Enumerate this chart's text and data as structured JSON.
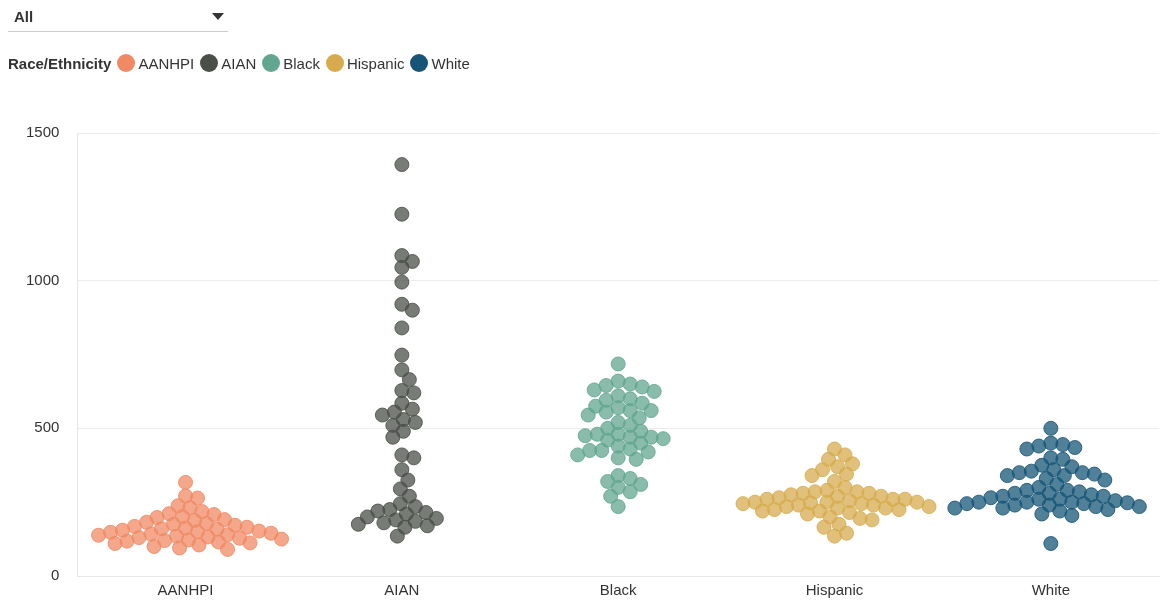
{
  "chart_data": {
    "type": "scatter",
    "legend_title": "Race/Ethnicity",
    "legend": "top left",
    "grid": "y",
    "marker": "circle",
    "annotations": [
      "All"
    ],
    "categories": [
      "AANHPI",
      "AIAN",
      "Black",
      "Hispanic",
      "White"
    ],
    "ylim": [
      0,
      1500
    ],
    "yticks": [
      0,
      500,
      1000,
      1500
    ],
    "series": [
      {
        "name": "AANHPI",
        "color": "#f08a64",
        "x": [
          "AANHPI",
          "AANHPI",
          "AANHPI",
          "AANHPI",
          "AANHPI",
          "AANHPI",
          "AANHPI",
          "AANHPI",
          "AANHPI",
          "AANHPI",
          "AANHPI",
          "AANHPI",
          "AANHPI",
          "AANHPI",
          "AANHPI",
          "AANHPI",
          "AANHPI",
          "AANHPI",
          "AANHPI",
          "AANHPI",
          "AANHPI",
          "AANHPI",
          "AANHPI",
          "AANHPI",
          "AANHPI",
          "AANHPI",
          "AANHPI",
          "AANHPI",
          "AANHPI",
          "AANHPI",
          "AANHPI",
          "AANHPI",
          "AANHPI",
          "AANHPI",
          "AANHPI",
          "AANHPI",
          "AANHPI",
          "AANHPI",
          "AANHPI",
          "AANHPI",
          "AANHPI",
          "AANHPI",
          "AANHPI",
          "AANHPI"
        ],
        "values": [
          317,
          271,
          264,
          238,
          231,
          218,
          211,
          208,
          201,
          198,
          191,
          188,
          182,
          178,
          175,
          172,
          168,
          165,
          162,
          158,
          155,
          152,
          150,
          148,
          145,
          142,
          140,
          138,
          135,
          132,
          130,
          128,
          125,
          122,
          120,
          118,
          115,
          112,
          110,
          105,
          100,
          95,
          90,
          160
        ]
      },
      {
        "name": "AIAN",
        "color": "#4a5048",
        "x": [
          "AIAN",
          "AIAN",
          "AIAN",
          "AIAN",
          "AIAN",
          "AIAN",
          "AIAN",
          "AIAN",
          "AIAN",
          "AIAN",
          "AIAN",
          "AIAN",
          "AIAN",
          "AIAN",
          "AIAN",
          "AIAN",
          "AIAN",
          "AIAN",
          "AIAN",
          "AIAN",
          "AIAN",
          "AIAN",
          "AIAN",
          "AIAN",
          "AIAN",
          "AIAN",
          "AIAN",
          "AIAN",
          "AIAN",
          "AIAN",
          "AIAN",
          "AIAN",
          "AIAN",
          "AIAN",
          "AIAN",
          "AIAN",
          "AIAN",
          "AIAN",
          "AIAN",
          "AIAN",
          "AIAN",
          "AIAN",
          "AIAN",
          "AIAN"
        ],
        "values": [
          1393,
          1225,
          1085,
          1065,
          1045,
          995,
          920,
          900,
          840,
          748,
          698,
          665,
          628,
          620,
          585,
          565,
          555,
          545,
          530,
          520,
          510,
          490,
          470,
          410,
          400,
          360,
          325,
          295,
          270,
          245,
          235,
          225,
          220,
          215,
          210,
          200,
          195,
          190,
          185,
          180,
          175,
          170,
          165,
          135
        ]
      },
      {
        "name": "Black",
        "color": "#62a68f",
        "x": [
          "Black",
          "Black",
          "Black",
          "Black",
          "Black",
          "Black",
          "Black",
          "Black",
          "Black",
          "Black",
          "Black",
          "Black",
          "Black",
          "Black",
          "Black",
          "Black",
          "Black",
          "Black",
          "Black",
          "Black",
          "Black",
          "Black",
          "Black",
          "Black",
          "Black",
          "Black",
          "Black",
          "Black",
          "Black",
          "Black",
          "Black",
          "Black",
          "Black",
          "Black",
          "Black",
          "Black",
          "Black",
          "Black",
          "Black",
          "Black",
          "Black",
          "Black",
          "Black",
          "Black",
          "Black",
          "Black"
        ],
        "values": [
          718,
          660,
          650,
          645,
          640,
          630,
          625,
          610,
          600,
          595,
          585,
          575,
          570,
          560,
          555,
          545,
          535,
          520,
          510,
          500,
          490,
          480,
          475,
          470,
          465,
          460,
          450,
          440,
          430,
          425,
          420,
          410,
          400,
          395,
          340,
          330,
          320,
          310,
          300,
          285,
          270,
          235,
          480,
          470,
          425,
          560
        ]
      },
      {
        "name": "Hispanic",
        "color": "#d6ab4d",
        "x": [
          "Hispanic",
          "Hispanic",
          "Hispanic",
          "Hispanic",
          "Hispanic",
          "Hispanic",
          "Hispanic",
          "Hispanic",
          "Hispanic",
          "Hispanic",
          "Hispanic",
          "Hispanic",
          "Hispanic",
          "Hispanic",
          "Hispanic",
          "Hispanic",
          "Hispanic",
          "Hispanic",
          "Hispanic",
          "Hispanic",
          "Hispanic",
          "Hispanic",
          "Hispanic",
          "Hispanic",
          "Hispanic",
          "Hispanic",
          "Hispanic",
          "Hispanic",
          "Hispanic",
          "Hispanic",
          "Hispanic",
          "Hispanic",
          "Hispanic",
          "Hispanic",
          "Hispanic",
          "Hispanic",
          "Hispanic",
          "Hispanic",
          "Hispanic",
          "Hispanic",
          "Hispanic",
          "Hispanic",
          "Hispanic",
          "Hispanic",
          "Hispanic",
          "Hispanic",
          "Hispanic",
          "Hispanic"
        ],
        "values": [
          430,
          410,
          395,
          380,
          370,
          360,
          345,
          340,
          320,
          300,
          290,
          285,
          280,
          275,
          270,
          265,
          260,
          255,
          250,
          248,
          245,
          240,
          235,
          230,
          225,
          220,
          215,
          210,
          200,
          195,
          190,
          175,
          165,
          145,
          135,
          285,
          280,
          270,
          260,
          250,
          245,
          240,
          235,
          230,
          225,
          220,
          250,
          260
        ]
      },
      {
        "name": "White",
        "color": "#175577",
        "x": [
          "White",
          "White",
          "White",
          "White",
          "White",
          "White",
          "White",
          "White",
          "White",
          "White",
          "White",
          "White",
          "White",
          "White",
          "White",
          "White",
          "White",
          "White",
          "White",
          "White",
          "White",
          "White",
          "White",
          "White",
          "White",
          "White",
          "White",
          "White",
          "White",
          "White",
          "White",
          "White",
          "White",
          "White",
          "White",
          "White",
          "White",
          "White",
          "White",
          "White",
          "White",
          "White",
          "White",
          "White",
          "White",
          "White",
          "White",
          "White",
          "White",
          "White"
        ],
        "values": [
          500,
          450,
          445,
          440,
          435,
          430,
          400,
          395,
          375,
          370,
          360,
          355,
          350,
          345,
          340,
          330,
          325,
          310,
          300,
          290,
          285,
          280,
          275,
          270,
          265,
          260,
          255,
          250,
          248,
          245,
          240,
          235,
          230,
          225,
          220,
          210,
          205,
          110,
          350,
          340,
          280,
          270,
          260,
          250,
          250,
          245,
          240,
          235,
          230,
          290
        ]
      }
    ]
  }
}
